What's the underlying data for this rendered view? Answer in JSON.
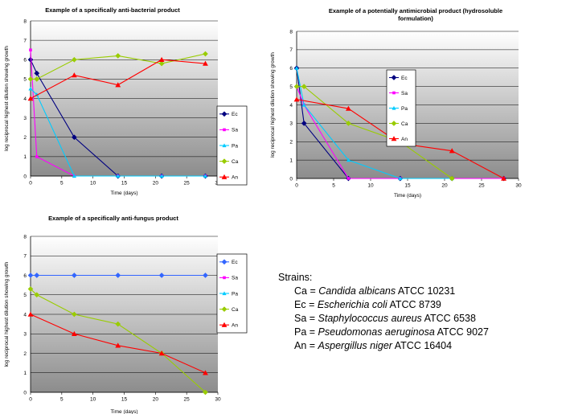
{
  "colors": {
    "Ec": "#000080",
    "Sa": "#ff00ff",
    "Pa": "#00ccff",
    "Ca": "#99cc00",
    "An": "#ff0000",
    "Ec_flat": "#3366ff"
  },
  "chart_data": [
    {
      "type": "line",
      "title": "Example of a specifically anti-bacterial product",
      "xlabel": "Time (days)",
      "ylabel": "log reciprocal highest dilution showing growth",
      "xlim": [
        0,
        30
      ],
      "ylim": [
        0,
        8
      ],
      "xticks": [
        "0",
        "5",
        "10",
        "15",
        "20",
        "25",
        "30"
      ],
      "yticks": [
        "0",
        "1",
        "2",
        "3",
        "4",
        "5",
        "6",
        "7",
        "8"
      ],
      "grid": "horizontal",
      "legend": "right",
      "series": [
        {
          "name": "Ec",
          "x": [
            0,
            1,
            7,
            14,
            21,
            28
          ],
          "y": [
            6,
            5.3,
            2,
            0,
            0,
            0
          ]
        },
        {
          "name": "Sa",
          "x": [
            0,
            1,
            7,
            14,
            21,
            28
          ],
          "y": [
            6.5,
            1,
            0,
            0,
            0,
            0
          ]
        },
        {
          "name": "Pa",
          "x": [
            0,
            1,
            7,
            14,
            21,
            28
          ],
          "y": [
            4.5,
            4.2,
            0,
            0,
            0,
            0
          ]
        },
        {
          "name": "Ca",
          "x": [
            0,
            1,
            7,
            14,
            21,
            28
          ],
          "y": [
            5,
            5,
            6,
            6.2,
            5.8,
            6.3
          ]
        },
        {
          "name": "An",
          "x": [
            0,
            7,
            14,
            21,
            28
          ],
          "y": [
            4,
            5.2,
            4.7,
            6,
            5.8
          ]
        }
      ]
    },
    {
      "type": "line",
      "title": "Example of a potentially antimicrobial product (hydrosoluble formulation)",
      "xlabel": "Time (days)",
      "ylabel": "log reciprocal highest dilution showing growth",
      "xlim": [
        0,
        30
      ],
      "ylim": [
        0,
        8
      ],
      "xticks": [
        "0",
        "5",
        "10",
        "15",
        "20",
        "25",
        "30"
      ],
      "yticks": [
        "0",
        "1",
        "2",
        "3",
        "4",
        "5",
        "6",
        "7",
        "8"
      ],
      "grid": "horizontal",
      "legend": "right",
      "series": [
        {
          "name": "Ec",
          "x": [
            0,
            1,
            7,
            14,
            21,
            28
          ],
          "y": [
            6,
            3,
            0,
            0,
            0,
            0
          ]
        },
        {
          "name": "Sa",
          "x": [
            0,
            1,
            7,
            14,
            21,
            28
          ],
          "y": [
            5,
            4,
            0,
            0,
            0,
            0
          ]
        },
        {
          "name": "Pa",
          "x": [
            0,
            1,
            7,
            14,
            21
          ],
          "y": [
            6,
            4,
            1,
            0,
            0
          ]
        },
        {
          "name": "Ca",
          "x": [
            0,
            1,
            7,
            14,
            21
          ],
          "y": [
            5,
            5,
            3,
            2,
            0
          ]
        },
        {
          "name": "An",
          "x": [
            0,
            7,
            14,
            21,
            28
          ],
          "y": [
            4.3,
            3.8,
            1.9,
            1.5,
            0
          ]
        }
      ]
    },
    {
      "type": "line",
      "title": "Example of a specifically anti-fungus product",
      "xlabel": "Time (days)",
      "ylabel": "log reciprocal highest dilution showing growth",
      "xlim": [
        0,
        30
      ],
      "ylim": [
        0,
        8
      ],
      "xticks": [
        "0",
        "5",
        "10",
        "15",
        "20",
        "25",
        "30"
      ],
      "yticks": [
        "0",
        "1",
        "2",
        "3",
        "4",
        "5",
        "6",
        "7",
        "8"
      ],
      "grid": "horizontal",
      "legend": "right",
      "series": [
        {
          "name": "Ec",
          "x": [
            0,
            1,
            7,
            14,
            21,
            28
          ],
          "y": [
            6,
            6,
            6,
            6,
            6,
            6
          ]
        },
        {
          "name": "Sa",
          "x": [],
          "y": []
        },
        {
          "name": "Pa",
          "x": [],
          "y": []
        },
        {
          "name": "Ca",
          "x": [
            0,
            1,
            7,
            14,
            21,
            28
          ],
          "y": [
            5.3,
            5,
            4,
            3.5,
            2,
            0
          ]
        },
        {
          "name": "An",
          "x": [
            0,
            7,
            14,
            21,
            28
          ],
          "y": [
            4,
            3,
            2.4,
            2,
            1
          ]
        }
      ]
    }
  ],
  "strains": {
    "heading": "Strains:",
    "items": [
      {
        "code": "Ca",
        "eq": " = ",
        "species": "Candida albicans",
        "strain": " ATCC 10231"
      },
      {
        "code": "Ec",
        "eq": " = ",
        "species": "Escherichia coli",
        "strain": " ATCC 8739"
      },
      {
        "code": "Sa",
        "eq": " = ",
        "species": "Staphylococcus aureus",
        "strain": " ATCC 6538"
      },
      {
        "code": "Pa",
        "eq": " = ",
        "species": "Pseudomonas aeruginosa",
        "strain": " ATCC 9027"
      },
      {
        "code": "An",
        "eq": " = ",
        "species": "Aspergillus niger",
        "strain": " ATCC 16404"
      }
    ]
  }
}
